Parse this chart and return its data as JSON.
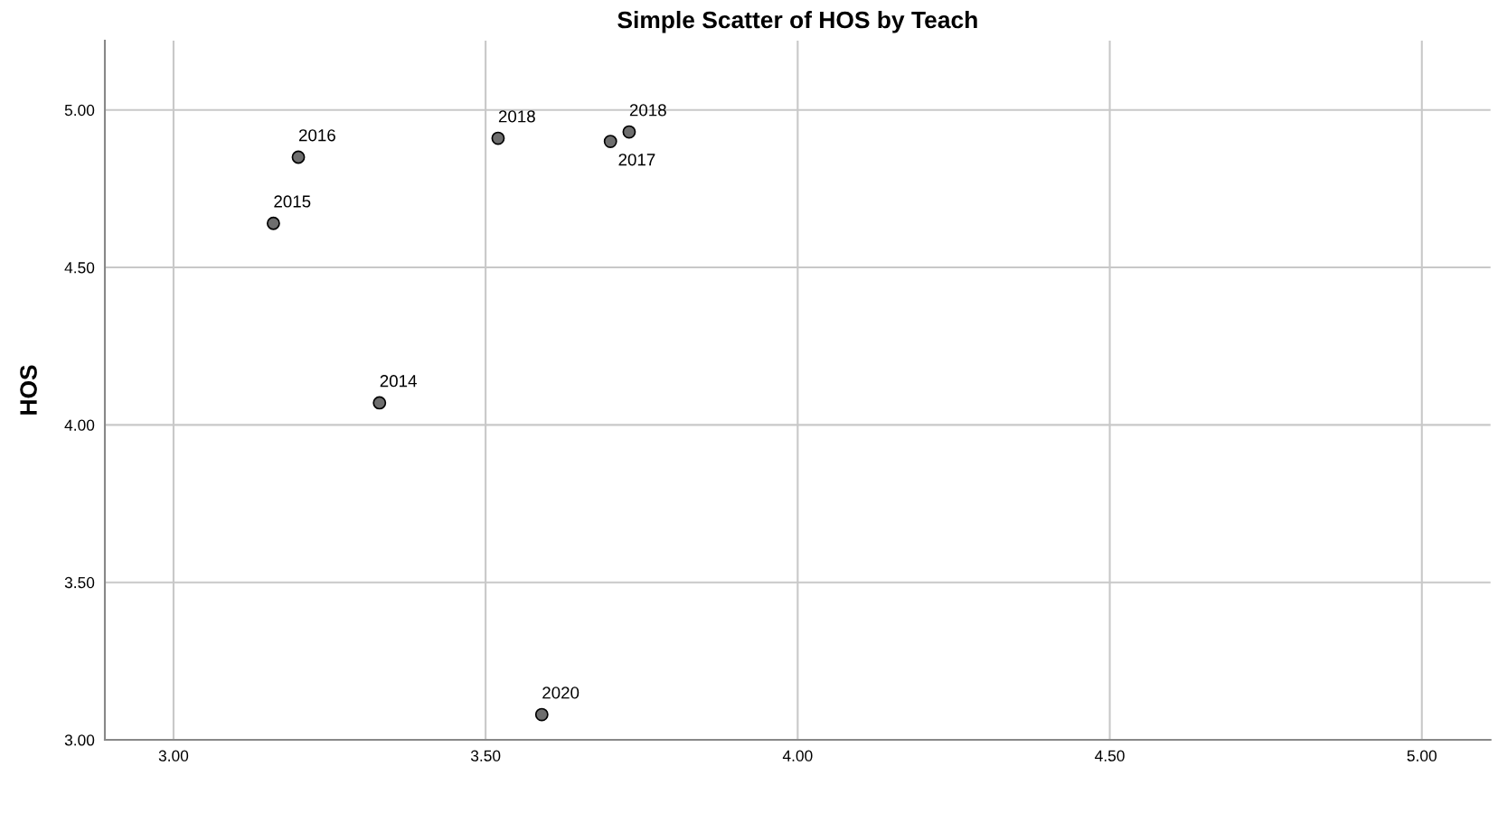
{
  "chart_data": {
    "type": "scatter",
    "title": "Simple Scatter of HOS by Teach",
    "ylabel": "HOS",
    "x": [
      3.2,
      3.16,
      3.33,
      3.52,
      3.7,
      3.73,
      3.59
    ],
    "series": [
      {
        "color": "#6e6e6e",
        "values": [
          4.85,
          4.64,
          4.07,
          4.91,
          4.9,
          4.93,
          3.08
        ]
      }
    ],
    "annotations": [
      {
        "text": "2016",
        "x": 3.2,
        "y": 4.85
      },
      {
        "text": "2015",
        "x": 3.16,
        "y": 4.64
      },
      {
        "text": "2014",
        "x": 3.33,
        "y": 4.07
      },
      {
        "text": "2018",
        "x": 3.52,
        "y": 4.91
      },
      {
        "text": "2017",
        "x": 3.7,
        "y": 4.9
      },
      {
        "text": "2018",
        "x": 3.73,
        "y": 4.93
      },
      {
        "text": "2020",
        "x": 3.59,
        "y": 3.08
      }
    ],
    "xlim": [
      2.89,
      5.11
    ],
    "ylim": [
      3.0,
      5.22
    ],
    "xticks": [
      {
        "value": 3,
        "label": "3.00"
      },
      {
        "value": 3.5,
        "label": "3.50"
      },
      {
        "value": 4,
        "label": "4.00"
      },
      {
        "value": 4.5,
        "label": "4.50"
      },
      {
        "value": 5,
        "label": "5.00"
      }
    ],
    "yticks": [
      {
        "value": 3,
        "label": "3.00"
      },
      {
        "value": 3.5,
        "label": "3.50"
      },
      {
        "value": 4,
        "label": "4.00"
      },
      {
        "value": 4.5,
        "label": "4.50"
      },
      {
        "value": 5,
        "label": "5.00"
      }
    ],
    "grid": true,
    "marker": "circle"
  }
}
